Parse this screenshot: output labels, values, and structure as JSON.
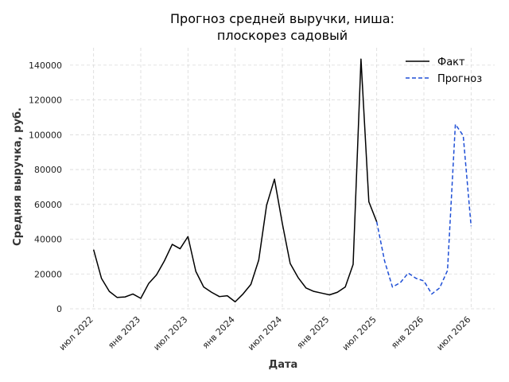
{
  "chart_data": {
    "type": "line",
    "title_lines": [
      "Прогноз средней выручки, ниша:",
      "плоскорез садовый"
    ],
    "xlabel": "Дата",
    "ylabel": "Средняя выручка, руб.",
    "ylim": [
      0,
      150000
    ],
    "yticks": [
      0,
      20000,
      40000,
      60000,
      80000,
      100000,
      120000,
      140000
    ],
    "xlim": [
      "2022-04",
      "2026-10"
    ],
    "xticks": [
      {
        "month": "2022-07",
        "label": "июл 2022"
      },
      {
        "month": "2023-01",
        "label": "янв 2023"
      },
      {
        "month": "2023-07",
        "label": "июл 2023"
      },
      {
        "month": "2024-01",
        "label": "янв 2024"
      },
      {
        "month": "2024-07",
        "label": "июл 2024"
      },
      {
        "month": "2025-01",
        "label": "янв 2025"
      },
      {
        "month": "2025-07",
        "label": "июл 2025"
      },
      {
        "month": "2026-01",
        "label": "янв 2026"
      },
      {
        "month": "2026-07",
        "label": "июл 2026"
      }
    ],
    "grid": true,
    "legend": "top-right",
    "series": [
      {
        "name": "Факт",
        "color": "#000000",
        "style": "solid",
        "x": [
          "2022-07",
          "2022-08",
          "2022-09",
          "2022-10",
          "2022-11",
          "2022-12",
          "2023-01",
          "2023-02",
          "2023-03",
          "2023-04",
          "2023-05",
          "2023-06",
          "2023-07",
          "2023-08",
          "2023-09",
          "2023-10",
          "2023-11",
          "2023-12",
          "2024-01",
          "2024-02",
          "2024-03",
          "2024-04",
          "2024-05",
          "2024-06",
          "2024-07",
          "2024-08",
          "2024-09",
          "2024-10",
          "2024-11",
          "2024-12",
          "2025-01",
          "2025-02",
          "2025-03",
          "2025-04",
          "2025-05",
          "2025-06",
          "2025-07"
        ],
        "y": [
          34000,
          17500,
          10000,
          6500,
          6800,
          8500,
          6000,
          14500,
          19500,
          27500,
          37000,
          34500,
          41500,
          21500,
          12500,
          9500,
          7000,
          7500,
          4000,
          8500,
          14000,
          28000,
          59500,
          74500,
          49000,
          26000,
          18000,
          12000,
          10000,
          9000,
          8000,
          9500,
          12500,
          25500,
          143500,
          61500,
          50000
        ]
      },
      {
        "name": "Прогноз",
        "color": "#1f4fd6",
        "style": "dashed",
        "x": [
          "2025-07",
          "2025-08",
          "2025-09",
          "2025-10",
          "2025-11",
          "2025-12",
          "2026-01",
          "2026-02",
          "2026-03",
          "2026-04",
          "2026-05",
          "2026-06",
          "2026-07"
        ],
        "y": [
          50000,
          27500,
          12500,
          15000,
          20500,
          17500,
          16000,
          8500,
          12000,
          22000,
          106000,
          99500,
          47500
        ]
      }
    ]
  }
}
